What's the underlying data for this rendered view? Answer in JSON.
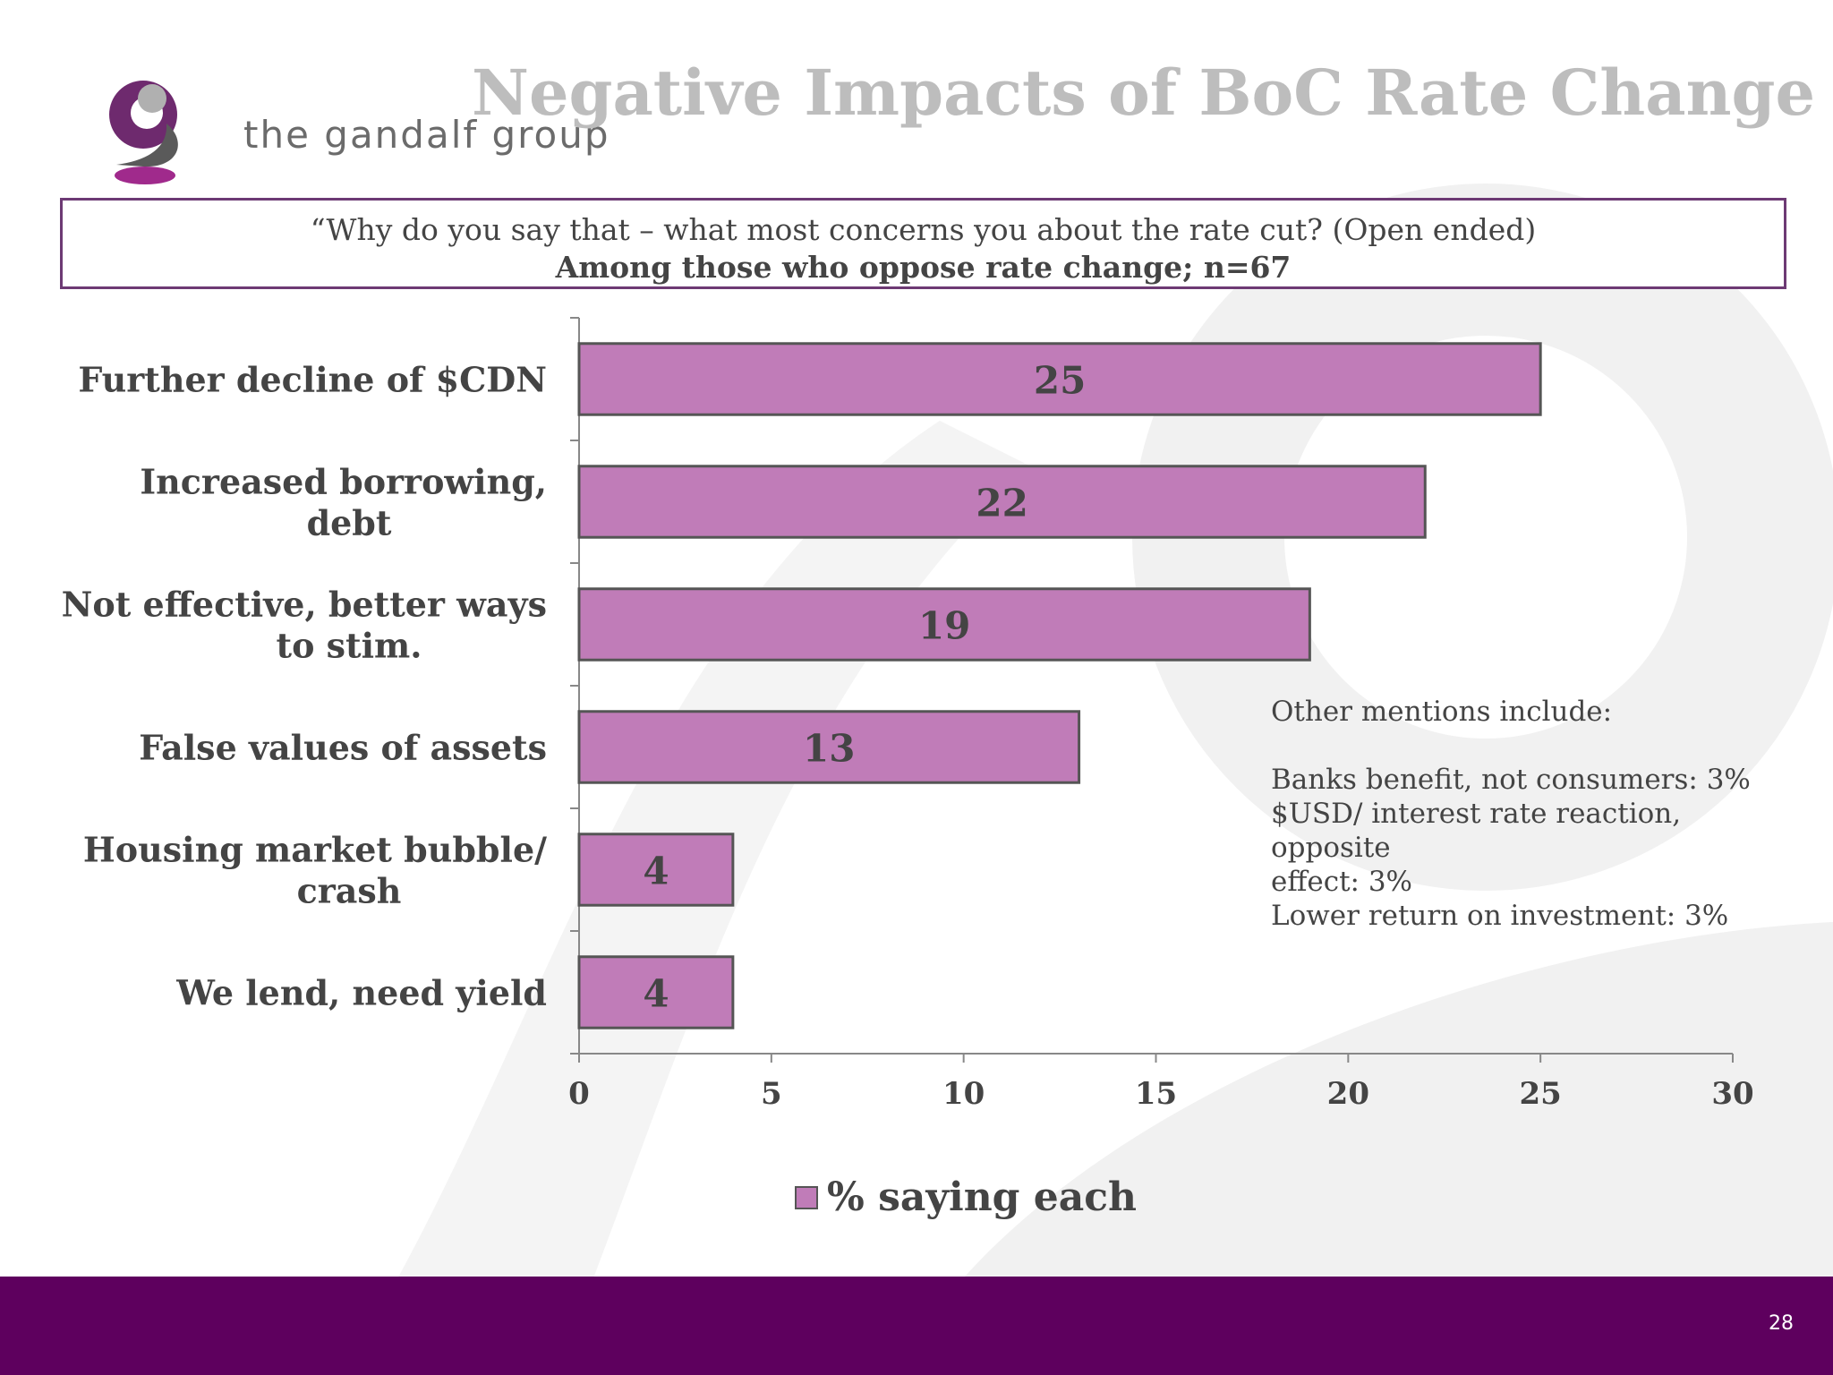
{
  "header": {
    "logo_text": "the gandalf group",
    "title": "Negative Impacts of BoC Rate Change"
  },
  "question": {
    "text": "“Why do you say that – what most concerns you about the rate cut? (Open ended)",
    "base": "Among those who oppose rate change; n=67"
  },
  "chart_data": {
    "type": "bar",
    "orientation": "horizontal",
    "categories": [
      [
        "Further decline of $CDN"
      ],
      [
        "Increased borrowing,",
        "debt"
      ],
      [
        "Not effective, better ways",
        "to stim."
      ],
      [
        "False values of assets"
      ],
      [
        "Housing market bubble/",
        "crash"
      ],
      [
        "We lend, need yield"
      ]
    ],
    "series": [
      {
        "name": "% saying each",
        "values": [
          25,
          22,
          19,
          13,
          4,
          4
        ]
      }
    ],
    "xlim": [
      0,
      30
    ],
    "xticks": [
      0,
      5,
      10,
      15,
      20,
      25,
      30
    ],
    "data_labels": true,
    "legend_position": "bottom",
    "grid": false,
    "colors": {
      "bar": "#c07cb8",
      "bar_border": "#555555",
      "text": "#444444"
    }
  },
  "other_mentions": {
    "title": "Other mentions include:",
    "items": [
      "Banks benefit, not consumers: 3%",
      "$USD/ interest rate reaction, opposite",
      "effect: 3%",
      "Lower return on investment: 3%"
    ]
  },
  "legend": {
    "label": "% saying each"
  },
  "footer": {
    "page_number": "28",
    "color": "#5e005e"
  }
}
